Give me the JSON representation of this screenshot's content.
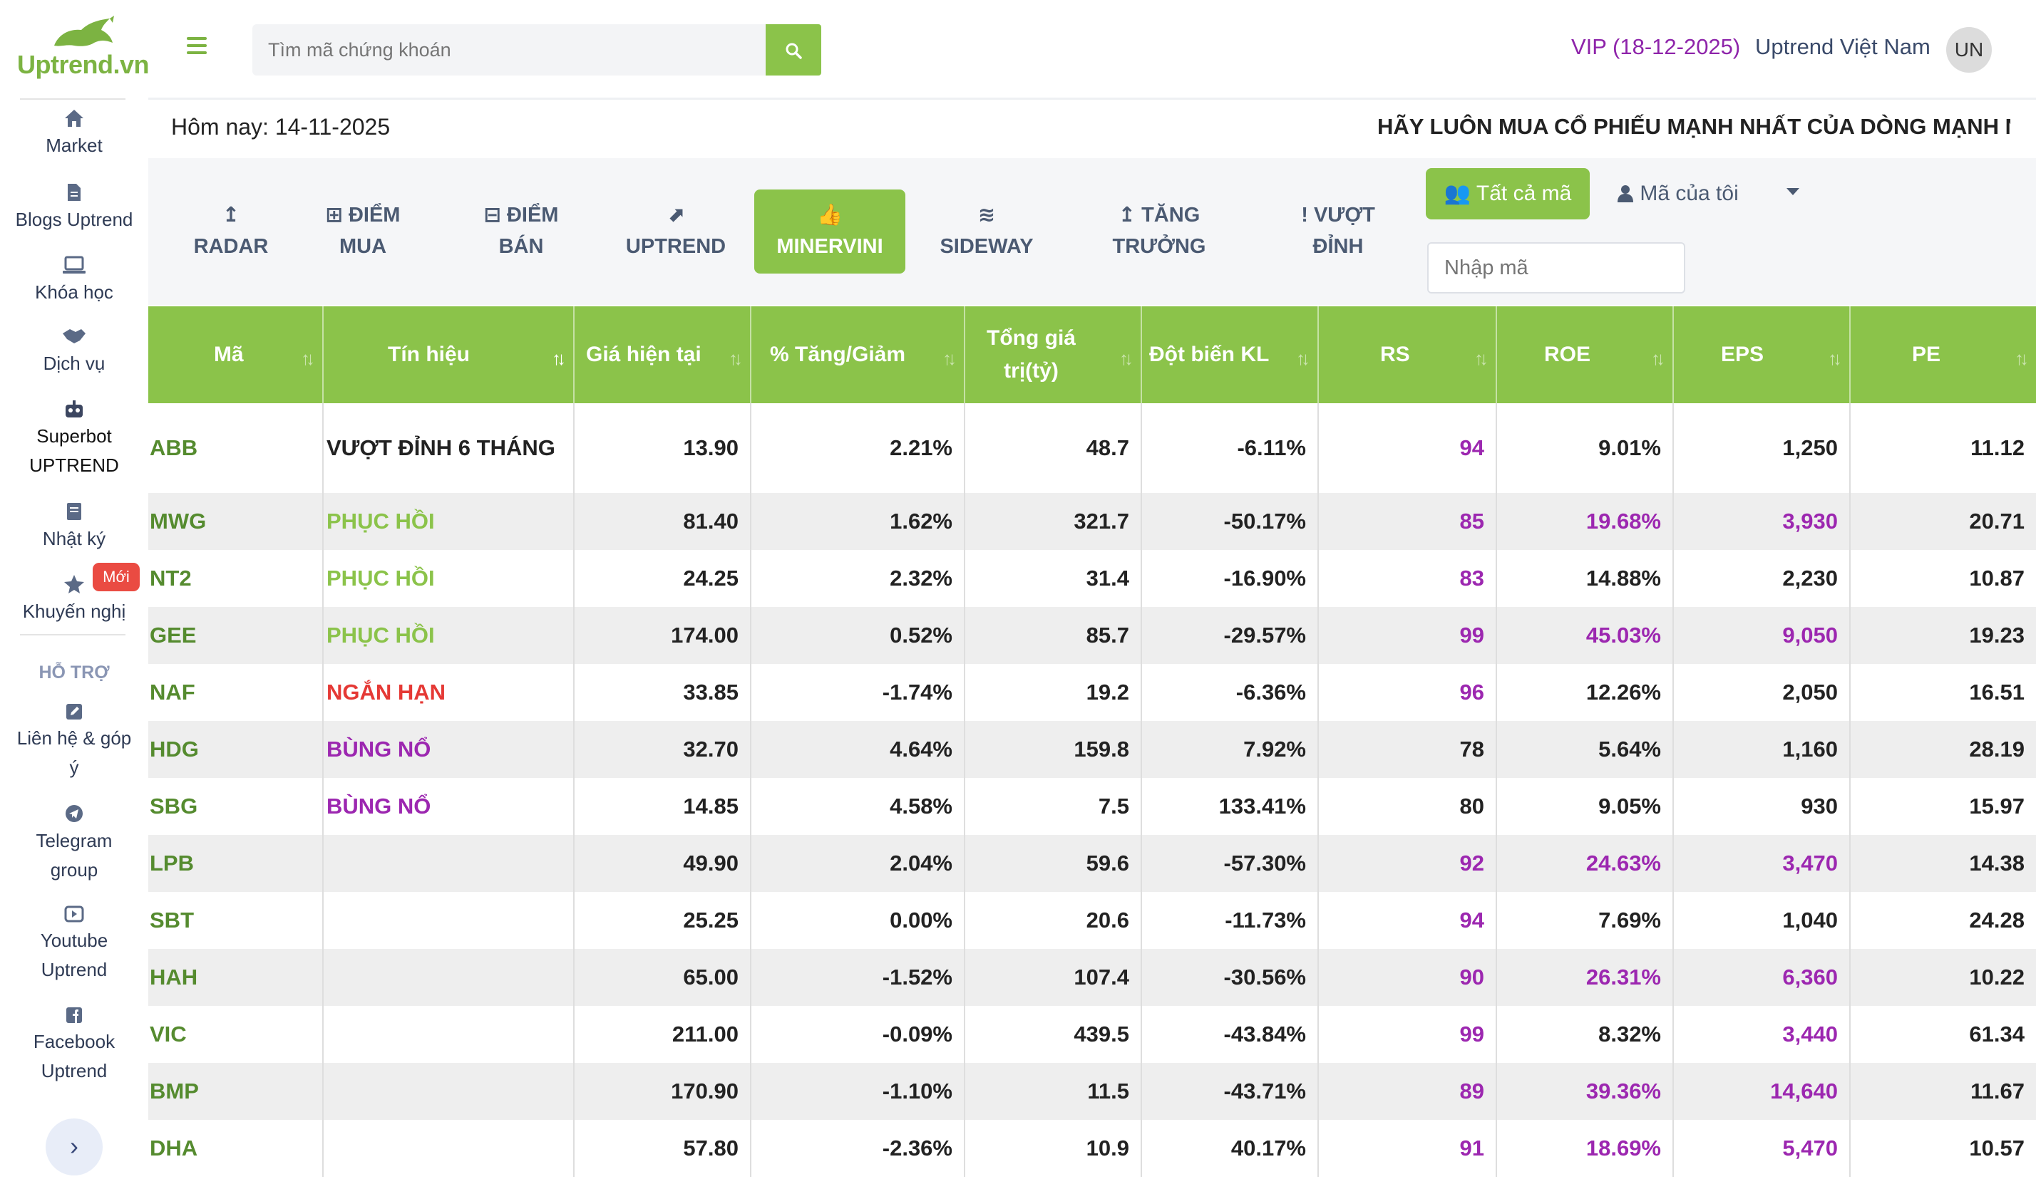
{
  "brand": {
    "name": "Uptrend.vn"
  },
  "sidebar": {
    "items": [
      {
        "label": "Market",
        "icon": "home-icon"
      },
      {
        "label": "Blogs Uptrend",
        "icon": "file-icon"
      },
      {
        "label": "Khóa học",
        "icon": "laptop-icon"
      },
      {
        "label": "Dịch vụ",
        "icon": "handshake-icon"
      },
      {
        "label_1": "Superbot",
        "label_2": "UPTREND",
        "icon": "robot-icon"
      },
      {
        "label": "Nhật ký",
        "icon": "book-icon"
      },
      {
        "label": "Khuyến nghị",
        "icon": "star-icon",
        "badge": "Mới"
      }
    ],
    "support_heading": "HỖ TRỢ",
    "support_items": [
      {
        "label_1": "Liên hệ & góp",
        "label_2": "ý",
        "icon": "edit-icon"
      },
      {
        "label_1": "Telegram",
        "label_2": "group",
        "icon": "telegram-icon"
      },
      {
        "label_1": "Youtube",
        "label_2": "Uptrend",
        "icon": "youtube-icon"
      },
      {
        "label_1": "Facebook",
        "label_2": "Uptrend",
        "icon": "facebook-icon"
      }
    ],
    "collapse_icon": "›"
  },
  "topbar": {
    "search_placeholder": "Tìm mã chứng khoán",
    "vip_text": "VIP (18-12-2025)",
    "account_name": "Uptrend Việt Nam",
    "avatar_initials": "UN"
  },
  "info": {
    "today": "Hôm nay: 14-11-2025",
    "slogan": "HÃY LUÔN MUA CỔ PHIẾU MẠNH NHẤT CỦA DÒNG MẠNH NHẤT"
  },
  "tabs": [
    {
      "line1": "RADAR",
      "line2": "",
      "icon": "↥"
    },
    {
      "line1": "ĐIỂM",
      "line2": "MUA",
      "icon": "⊞"
    },
    {
      "line1": "ĐIỂM",
      "line2": "BÁN",
      "icon": "⊟"
    },
    {
      "line1": "UPTREND",
      "line2": "",
      "icon": "⬈"
    },
    {
      "line1": "MINERVINI",
      "line2": "",
      "icon": "👍"
    },
    {
      "line1": "SIDEWAY",
      "line2": "",
      "icon": "≋"
    },
    {
      "line1": "TĂNG",
      "line2": "TRƯỞNG",
      "icon": "↥"
    },
    {
      "line1": "VƯỢT",
      "line2": "ĐỈNH",
      "icon": "!"
    }
  ],
  "filters": {
    "all_label": "Tất cả mã",
    "mine_label": "Mã của tôi",
    "code_placeholder": "Nhập mã"
  },
  "table": {
    "headers": [
      {
        "line1": "Mã",
        "line2": ""
      },
      {
        "line1": "Tín hiệu",
        "line2": ""
      },
      {
        "line1": "Giá hiện tại",
        "line2": ""
      },
      {
        "line1": "% Tăng/Giảm",
        "line2": ""
      },
      {
        "line1": "Tổng giá",
        "line2": "trị(tỷ)"
      },
      {
        "line1": "Đột biến KL",
        "line2": ""
      },
      {
        "line1": "RS",
        "line2": ""
      },
      {
        "line1": "ROE",
        "line2": ""
      },
      {
        "line1": "EPS",
        "line2": ""
      },
      {
        "line1": "PE",
        "line2": ""
      }
    ],
    "rows": [
      {
        "code": "ABB",
        "signal": "VƯỢT ĐỈNH 6 THÁNG",
        "signal_color": "#222222",
        "price": "13.90",
        "change": "2.21%",
        "value": "48.7",
        "vol": "-6.11%",
        "rs": "94",
        "rs_color": "#9c27b0",
        "roe": "9.01%",
        "roe_color": "#222222",
        "eps": "1,250",
        "eps_color": "#222222",
        "pe": "11.12"
      },
      {
        "code": "MWG",
        "signal": "PHỤC HỒI",
        "signal_color": "#8bc34a",
        "price": "81.40",
        "change": "1.62%",
        "value": "321.7",
        "vol": "-50.17%",
        "rs": "85",
        "rs_color": "#9c27b0",
        "roe": "19.68%",
        "roe_color": "#9c27b0",
        "eps": "3,930",
        "eps_color": "#9c27b0",
        "pe": "20.71"
      },
      {
        "code": "NT2",
        "signal": "PHỤC HỒI",
        "signal_color": "#8bc34a",
        "price": "24.25",
        "change": "2.32%",
        "value": "31.4",
        "vol": "-16.90%",
        "rs": "83",
        "rs_color": "#9c27b0",
        "roe": "14.88%",
        "roe_color": "#222222",
        "eps": "2,230",
        "eps_color": "#222222",
        "pe": "10.87"
      },
      {
        "code": "GEE",
        "signal": "PHỤC HỒI",
        "signal_color": "#8bc34a",
        "price": "174.00",
        "change": "0.52%",
        "value": "85.7",
        "vol": "-29.57%",
        "rs": "99",
        "rs_color": "#9c27b0",
        "roe": "45.03%",
        "roe_color": "#9c27b0",
        "eps": "9,050",
        "eps_color": "#9c27b0",
        "pe": "19.23"
      },
      {
        "code": "NAF",
        "signal": "NGẮN HẠN",
        "signal_color": "#e53935",
        "price": "33.85",
        "change": "-1.74%",
        "value": "19.2",
        "vol": "-6.36%",
        "rs": "96",
        "rs_color": "#9c27b0",
        "roe": "12.26%",
        "roe_color": "#222222",
        "eps": "2,050",
        "eps_color": "#222222",
        "pe": "16.51"
      },
      {
        "code": "HDG",
        "signal": "BÙNG NỔ",
        "signal_color": "#9c27b0",
        "price": "32.70",
        "change": "4.64%",
        "value": "159.8",
        "vol": "7.92%",
        "rs": "78",
        "rs_color": "#222222",
        "roe": "5.64%",
        "roe_color": "#222222",
        "eps": "1,160",
        "eps_color": "#222222",
        "pe": "28.19"
      },
      {
        "code": "SBG",
        "signal": "BÙNG NỔ",
        "signal_color": "#9c27b0",
        "price": "14.85",
        "change": "4.58%",
        "value": "7.5",
        "vol": "133.41%",
        "rs": "80",
        "rs_color": "#222222",
        "roe": "9.05%",
        "roe_color": "#222222",
        "eps": "930",
        "eps_color": "#222222",
        "pe": "15.97"
      },
      {
        "code": "LPB",
        "signal": "",
        "signal_color": "#222222",
        "price": "49.90",
        "change": "2.04%",
        "value": "59.6",
        "vol": "-57.30%",
        "rs": "92",
        "rs_color": "#9c27b0",
        "roe": "24.63%",
        "roe_color": "#9c27b0",
        "eps": "3,470",
        "eps_color": "#9c27b0",
        "pe": "14.38"
      },
      {
        "code": "SBT",
        "signal": "",
        "signal_color": "#222222",
        "price": "25.25",
        "change": "0.00%",
        "value": "20.6",
        "vol": "-11.73%",
        "rs": "94",
        "rs_color": "#9c27b0",
        "roe": "7.69%",
        "roe_color": "#222222",
        "eps": "1,040",
        "eps_color": "#222222",
        "pe": "24.28"
      },
      {
        "code": "HAH",
        "signal": "",
        "signal_color": "#222222",
        "price": "65.00",
        "change": "-1.52%",
        "value": "107.4",
        "vol": "-30.56%",
        "rs": "90",
        "rs_color": "#9c27b0",
        "roe": "26.31%",
        "roe_color": "#9c27b0",
        "eps": "6,360",
        "eps_color": "#9c27b0",
        "pe": "10.22"
      },
      {
        "code": "VIC",
        "signal": "",
        "signal_color": "#222222",
        "price": "211.00",
        "change": "-0.09%",
        "value": "439.5",
        "vol": "-43.84%",
        "rs": "99",
        "rs_color": "#9c27b0",
        "roe": "8.32%",
        "roe_color": "#222222",
        "eps": "3,440",
        "eps_color": "#9c27b0",
        "pe": "61.34"
      },
      {
        "code": "BMP",
        "signal": "",
        "signal_color": "#222222",
        "price": "170.90",
        "change": "-1.10%",
        "value": "11.5",
        "vol": "-43.71%",
        "rs": "89",
        "rs_color": "#9c27b0",
        "roe": "39.36%",
        "roe_color": "#9c27b0",
        "eps": "14,640",
        "eps_color": "#9c27b0",
        "pe": "11.67"
      },
      {
        "code": "DHA",
        "signal": "",
        "signal_color": "#222222",
        "price": "57.80",
        "change": "-2.36%",
        "value": "10.9",
        "vol": "40.17%",
        "rs": "91",
        "rs_color": "#9c27b0",
        "roe": "18.69%",
        "roe_color": "#9c27b0",
        "eps": "5,470",
        "eps_color": "#9c27b0",
        "pe": "10.57"
      }
    ]
  },
  "colors": {
    "brand_green": "#8bc34a",
    "code_green": "#558b2f",
    "purple": "#9c27b0",
    "red": "#e53935"
  }
}
